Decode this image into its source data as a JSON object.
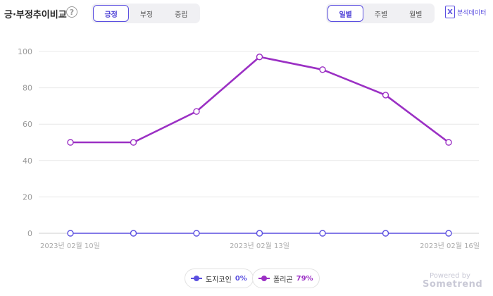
{
  "header": {
    "title": "긍·부정추이비교",
    "help_icon": "?",
    "sentiment_tabs": [
      {
        "label": "긍정",
        "active": true
      },
      {
        "label": "부정",
        "active": false
      },
      {
        "label": "중립",
        "active": false
      }
    ],
    "period_tabs": [
      {
        "label": "일별",
        "active": true
      },
      {
        "label": "주별",
        "active": false
      },
      {
        "label": "월별",
        "active": false
      }
    ],
    "export_label": "분석데이터",
    "export_icon": "X"
  },
  "legend": [
    {
      "name": "도지코인",
      "value": "0%",
      "color": "#5a4fe0"
    },
    {
      "name": "폴리곤",
      "value": "79%",
      "color": "#9b30c4"
    }
  ],
  "footer": {
    "powered_by": "Powered by",
    "brand": "Sometrend"
  },
  "chart_data": {
    "type": "line",
    "x": [
      "2023-02-10",
      "2023-02-11",
      "2023-02-12",
      "2023-02-13",
      "2023-02-14",
      "2023-02-15",
      "2023-02-16"
    ],
    "x_tick_labels": [
      {
        "index": 0,
        "label": "2023년 02월 10일"
      },
      {
        "index": 3,
        "label": "2023년 02월 13일"
      },
      {
        "index": 6,
        "label": "2023년 02월 16일"
      }
    ],
    "ylim": [
      0,
      100
    ],
    "yticks": [
      0,
      20,
      40,
      60,
      80,
      100
    ],
    "grid": true,
    "series": [
      {
        "name": "도지코인",
        "color": "#5a4fe0",
        "values": [
          0,
          0,
          0,
          0,
          0,
          0,
          0
        ]
      },
      {
        "name": "폴리곤",
        "color": "#9b30c4",
        "values": [
          50,
          50,
          67,
          97,
          90,
          76,
          50
        ]
      }
    ]
  }
}
